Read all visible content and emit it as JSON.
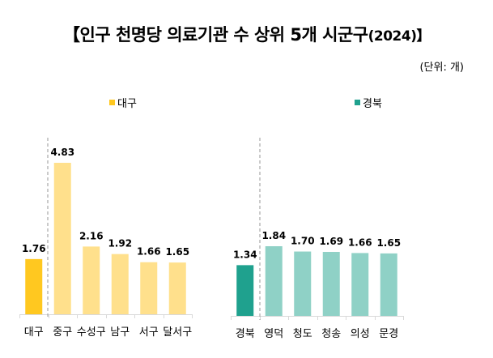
{
  "title": {
    "main": "【인구 천명당 의료기관 수 상위 5개 시군구",
    "year": "(2024)】"
  },
  "unit": "(단위: 개)",
  "chart_data": [
    {
      "type": "bar",
      "legend": "대구",
      "legend_placement": "top",
      "categories": [
        "대구",
        "중구",
        "수성구",
        "남구",
        "서구",
        "달서구"
      ],
      "values": [
        1.76,
        4.83,
        2.16,
        1.92,
        1.66,
        1.65
      ],
      "value_labels": [
        "1.76",
        "4.83",
        "2.16",
        "1.92",
        "1.66",
        "1.65"
      ],
      "colors": {
        "average": "#FFC820",
        "district": "#FFE08C"
      },
      "grid": false,
      "ylim": [
        0,
        4.83
      ]
    },
    {
      "type": "bar",
      "legend": "경북",
      "legend_placement": "top",
      "categories": [
        "경북",
        "영덕",
        "청도",
        "청송",
        "의성",
        "문경"
      ],
      "values": [
        1.34,
        1.84,
        1.7,
        1.69,
        1.66,
        1.65
      ],
      "value_labels": [
        "1.34",
        "1.84",
        "1.70",
        "1.69",
        "1.66",
        "1.65"
      ],
      "colors": {
        "average": "#1FA18E",
        "district": "#8FD1C6"
      },
      "grid": false,
      "ylim": [
        0,
        1.84
      ]
    }
  ]
}
